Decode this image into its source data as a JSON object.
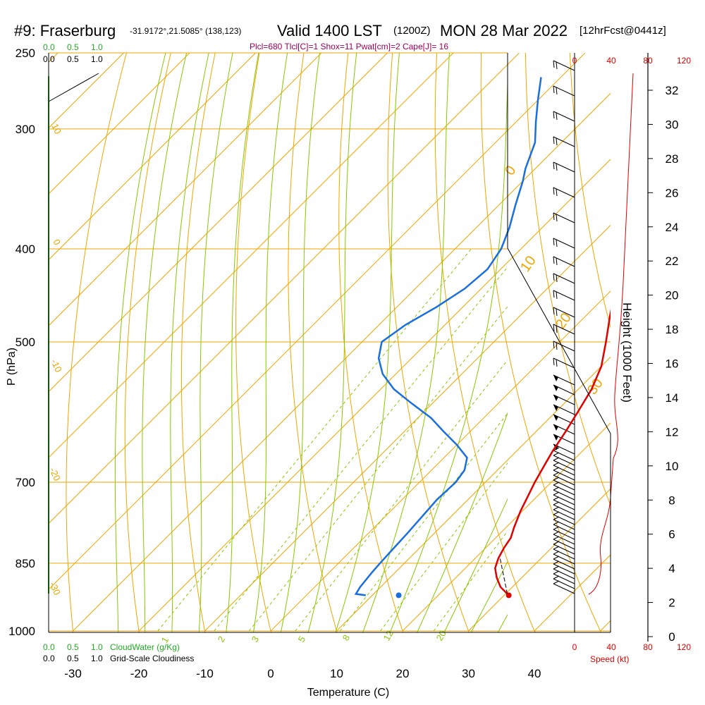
{
  "header": {
    "station": "#9: Fraserburg",
    "coords": "-31.9172°,21.5085° (138,123)",
    "valid": "Valid 1400 LST",
    "zulu": "(1200Z)",
    "date": "MON 28 Mar 2022",
    "fcst": "[12hrFcst@0441z]"
  },
  "indices": "Plcl=680 Tlcl[C]=1 Shox=11 Pwat[cm]=2 Cape[J]= 16",
  "colors": {
    "temperature": "#e00000",
    "dewpoint": "#1a6fe0",
    "isotherm_isobar": "#f0a500",
    "dry_adiabat": "#f0a500",
    "moist_adiabat": "#88c800",
    "mixing_ratio": "#88c800",
    "cloud_scale": "#22aa22",
    "speed_red": "#e00000"
  },
  "labels": {
    "cloudwater_top": [
      "0.0",
      "0.5",
      "1.0"
    ],
    "cloudiness_top": [
      "0.0",
      "0.5",
      "1.0"
    ],
    "cloudwater_bottom": [
      "0.0",
      "0.5",
      "1.0"
    ],
    "cloudwater_caption": "CloudWater (g/Kg)",
    "cloudiness_bottom": [
      "0.0",
      "0.5",
      "1.0"
    ],
    "cloudiness_caption": "Grid-Scale Cloudiness",
    "speed_top": [
      "0",
      "40",
      "80",
      "120"
    ],
    "speed_bottom": [
      "0",
      "40",
      "80",
      "120"
    ],
    "speed_caption": "Speed (kt)",
    "height_axis": "Height (1000 Feet)",
    "p_axis": "P (hPa)",
    "t_axis": "Temperature (C)"
  },
  "chart_data": {
    "type": "line",
    "subtype": "skew-T log-P sounding",
    "xlabel": "Temperature (C)",
    "ylabel": "P (hPa)",
    "xlim": [
      -35,
      45
    ],
    "ylim_hpa": [
      1000,
      250
    ],
    "x_ticks": [
      -30,
      -20,
      -10,
      0,
      10,
      20,
      30,
      40
    ],
    "pressure_ticks": [
      250,
      300,
      400,
      500,
      700,
      850,
      1000
    ],
    "height_ticks_kft": [
      0,
      2,
      4,
      6,
      8,
      10,
      12,
      14,
      16,
      18,
      20,
      22,
      24,
      26,
      28,
      30,
      32
    ],
    "dry_adiabat_labels": [
      "10",
      "0",
      "-10",
      "-20",
      "-30",
      "0",
      "10",
      "20",
      "30"
    ],
    "mixing_ratio_labels": [
      "1",
      "2",
      "3",
      "5",
      "8",
      "12",
      "20"
    ],
    "series": [
      {
        "name": "Temperature",
        "points": [
          [
            918,
            30.7
          ],
          [
            900,
            28.2
          ],
          [
            880,
            26.2
          ],
          [
            860,
            24.5
          ],
          [
            840,
            23.5
          ],
          [
            820,
            22.8
          ],
          [
            800,
            22.3
          ],
          [
            780,
            21.2
          ],
          [
            750,
            19.7
          ],
          [
            720,
            18.4
          ],
          [
            700,
            17.5
          ],
          [
            670,
            16.3
          ],
          [
            650,
            15.5
          ],
          [
            620,
            14.5
          ],
          [
            590,
            13.3
          ],
          [
            560,
            12.0
          ],
          [
            530,
            10.0
          ],
          [
            500,
            7.0
          ],
          [
            470,
            3.7
          ],
          [
            450,
            1.5
          ],
          [
            420,
            -2.0
          ],
          [
            400,
            -4.2
          ],
          [
            380,
            -7.0
          ],
          [
            360,
            -10.0
          ],
          [
            340,
            -13.5
          ],
          [
            320,
            -17.0
          ],
          [
            300,
            -21.0
          ],
          [
            280,
            -25.5
          ],
          [
            265,
            -29.0
          ]
        ]
      },
      {
        "name": "Dewpoint",
        "points": [
          [
            918,
            9.0
          ],
          [
            915,
            7.3
          ],
          [
            900,
            6.9
          ],
          [
            870,
            6.5
          ],
          [
            850,
            6.3
          ],
          [
            820,
            6.1
          ],
          [
            790,
            5.9
          ],
          [
            760,
            5.6
          ],
          [
            730,
            5.3
          ],
          [
            700,
            5.5
          ],
          [
            680,
            5.0
          ],
          [
            660,
            3.5
          ],
          [
            640,
            0.0
          ],
          [
            620,
            -4.0
          ],
          [
            600,
            -8.0
          ],
          [
            580,
            -13.0
          ],
          [
            560,
            -18.0
          ],
          [
            540,
            -22.0
          ],
          [
            520,
            -25.0
          ],
          [
            500,
            -27.0
          ],
          [
            480,
            -26.0
          ],
          [
            460,
            -24.0
          ],
          [
            440,
            -22.5
          ],
          [
            420,
            -22.0
          ],
          [
            400,
            -23.0
          ],
          [
            380,
            -25.0
          ],
          [
            360,
            -27.5
          ],
          [
            340,
            -30.0
          ],
          [
            330,
            -31.5
          ],
          [
            310,
            -34.0
          ],
          [
            295,
            -37.0
          ],
          [
            280,
            -40.0
          ],
          [
            265,
            -43.0
          ]
        ]
      },
      {
        "name": "Surface dewpoint",
        "points": [
          [
            918,
            14.0
          ]
        ]
      }
    ]
  }
}
